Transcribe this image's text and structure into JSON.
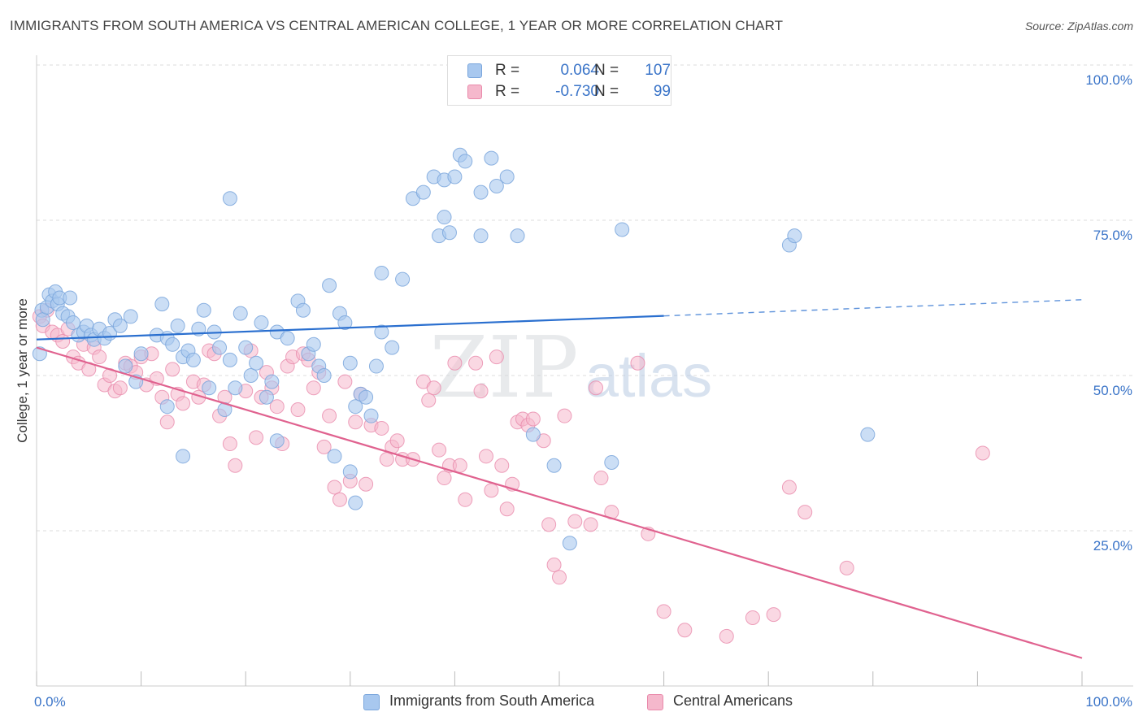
{
  "title": "IMMIGRANTS FROM SOUTH AMERICA VS CENTRAL AMERICAN COLLEGE, 1 YEAR OR MORE CORRELATION CHART",
  "source": "Source: ZipAtlas.com",
  "watermark": {
    "zip": "ZIP",
    "atlas": "atlas"
  },
  "legend": {
    "rows": [
      {
        "r_label": "R =",
        "r_value": "0.064",
        "n_label": "N =",
        "n_value": "107"
      },
      {
        "r_label": "R =",
        "r_value": "-0.730",
        "n_label": "N =",
        "n_value": "99"
      }
    ]
  },
  "bottom_legend": [
    "Immigrants from South America",
    "Central Americans"
  ],
  "colors": {
    "blue_fill": "#a8c8ef",
    "blue_stroke": "#7aa6dc",
    "blue_line": "#2a6fcf",
    "pink_fill": "#f5b8cc",
    "pink_stroke": "#e98aab",
    "pink_line": "#e0628f",
    "value_text": "#3a74c8",
    "grid": "#dddddd"
  },
  "chart_data": {
    "type": "scatter",
    "title": "IMMIGRANTS FROM SOUTH AMERICA VS CENTRAL AMERICAN COLLEGE, 1 YEAR OR MORE CORRELATION CHART",
    "xlabel": "",
    "ylabel": "College, 1 year or more",
    "xlim": [
      0,
      100
    ],
    "ylim": [
      0,
      100
    ],
    "x_tick_labels": [
      "0.0%",
      "100.0%"
    ],
    "y_ticks": [
      25,
      50,
      75,
      100
    ],
    "y_tick_labels": [
      "25.0%",
      "50.0%",
      "75.0%",
      "100.0%"
    ],
    "grid": true,
    "legend_position": "top-center",
    "series": [
      {
        "name": "Immigrants from South America",
        "R": 0.064,
        "N": 107,
        "trend": {
          "x0": 0,
          "y0": 55.8,
          "x1": 60,
          "y1": 59.6,
          "dashed_to_x": 100,
          "dashed_to_y": 62.2
        },
        "points": [
          [
            0.3,
            53.5
          ],
          [
            0.5,
            60.5
          ],
          [
            0.6,
            59.0
          ],
          [
            1.0,
            61.0
          ],
          [
            1.2,
            63.0
          ],
          [
            1.5,
            62.0
          ],
          [
            1.8,
            63.5
          ],
          [
            2.0,
            61.5
          ],
          [
            2.2,
            62.5
          ],
          [
            2.5,
            60.0
          ],
          [
            3.0,
            59.5
          ],
          [
            3.2,
            62.5
          ],
          [
            3.5,
            58.5
          ],
          [
            4.0,
            56.5
          ],
          [
            4.5,
            57.0
          ],
          [
            4.8,
            58.0
          ],
          [
            5.2,
            56.5
          ],
          [
            5.5,
            55.8
          ],
          [
            6.0,
            57.5
          ],
          [
            6.5,
            56.0
          ],
          [
            7.0,
            56.8
          ],
          [
            7.5,
            59.0
          ],
          [
            8.0,
            58.0
          ],
          [
            8.5,
            51.5
          ],
          [
            9.0,
            59.5
          ],
          [
            9.5,
            49.0
          ],
          [
            10.0,
            53.5
          ],
          [
            11.5,
            56.5
          ],
          [
            12.0,
            61.5
          ],
          [
            12.5,
            56.0
          ],
          [
            13.0,
            55.0
          ],
          [
            13.5,
            58.0
          ],
          [
            14.0,
            53.0
          ],
          [
            14.5,
            54.0
          ],
          [
            15.0,
            52.5
          ],
          [
            15.5,
            57.5
          ],
          [
            16.0,
            60.5
          ],
          [
            16.5,
            48.0
          ],
          [
            17.0,
            57.0
          ],
          [
            17.5,
            54.5
          ],
          [
            18.0,
            44.5
          ],
          [
            18.5,
            52.5
          ],
          [
            19.0,
            48.0
          ],
          [
            19.5,
            60.0
          ],
          [
            20.0,
            54.5
          ],
          [
            20.5,
            50.0
          ],
          [
            21.0,
            52.0
          ],
          [
            21.5,
            58.5
          ],
          [
            22.0,
            46.5
          ],
          [
            22.5,
            49.0
          ],
          [
            23.0,
            57.0
          ],
          [
            24.0,
            56.0
          ],
          [
            25.0,
            62.0
          ],
          [
            25.5,
            60.5
          ],
          [
            26.0,
            53.5
          ],
          [
            26.5,
            55.0
          ],
          [
            27.0,
            51.5
          ],
          [
            27.5,
            50.0
          ],
          [
            28.0,
            64.5
          ],
          [
            29.0,
            60.0
          ],
          [
            29.5,
            58.5
          ],
          [
            30.0,
            52.0
          ],
          [
            30.5,
            45.0
          ],
          [
            31.0,
            47.0
          ],
          [
            31.5,
            46.5
          ],
          [
            32.0,
            43.5
          ],
          [
            32.5,
            51.5
          ],
          [
            33.0,
            57.0
          ],
          [
            34.0,
            54.5
          ],
          [
            12.5,
            45.0
          ],
          [
            14.0,
            37.0
          ],
          [
            23.0,
            39.5
          ],
          [
            28.5,
            37.0
          ],
          [
            30.0,
            34.5
          ],
          [
            30.5,
            29.5
          ],
          [
            36.0,
            78.5
          ],
          [
            37.0,
            79.5
          ],
          [
            38.0,
            82.0
          ],
          [
            39.0,
            81.5
          ],
          [
            40.0,
            82.0
          ],
          [
            40.5,
            85.5
          ],
          [
            41.0,
            84.5
          ],
          [
            42.5,
            79.5
          ],
          [
            43.5,
            85.0
          ],
          [
            44.0,
            80.5
          ],
          [
            45.0,
            82.0
          ],
          [
            38.5,
            72.5
          ],
          [
            39.0,
            75.5
          ],
          [
            39.5,
            73.0
          ],
          [
            42.5,
            72.5
          ],
          [
            46.0,
            72.5
          ],
          [
            33.0,
            66.5
          ],
          [
            35.0,
            65.5
          ],
          [
            18.5,
            78.5
          ],
          [
            47.5,
            40.5
          ],
          [
            49.5,
            35.5
          ],
          [
            51.0,
            23.0
          ],
          [
            55.0,
            36.0
          ],
          [
            56.0,
            73.5
          ],
          [
            72.0,
            71.0
          ],
          [
            72.5,
            72.5
          ],
          [
            79.5,
            40.5
          ]
        ]
      },
      {
        "name": "Central Americans",
        "R": -0.73,
        "N": 99,
        "trend": {
          "x0": 0,
          "y0": 54.5,
          "x1": 100,
          "y1": 4.5
        },
        "points": [
          [
            0.3,
            59.5
          ],
          [
            0.6,
            58.0
          ],
          [
            1.0,
            60.5
          ],
          [
            1.5,
            57.0
          ],
          [
            2.0,
            56.5
          ],
          [
            2.5,
            55.5
          ],
          [
            3.0,
            57.5
          ],
          [
            3.5,
            53.0
          ],
          [
            4.0,
            52.0
          ],
          [
            4.5,
            55.0
          ],
          [
            5.0,
            51.0
          ],
          [
            5.5,
            54.5
          ],
          [
            6.0,
            53.0
          ],
          [
            6.5,
            48.5
          ],
          [
            7.0,
            50.0
          ],
          [
            7.5,
            47.5
          ],
          [
            8.0,
            48.0
          ],
          [
            8.5,
            52.0
          ],
          [
            9.0,
            51.5
          ],
          [
            9.5,
            50.5
          ],
          [
            10.0,
            53.0
          ],
          [
            10.5,
            48.5
          ],
          [
            11.0,
            53.5
          ],
          [
            11.5,
            49.5
          ],
          [
            12.0,
            46.5
          ],
          [
            12.5,
            42.5
          ],
          [
            13.0,
            51.0
          ],
          [
            13.5,
            47.0
          ],
          [
            14.0,
            45.5
          ],
          [
            15.0,
            49.0
          ],
          [
            15.5,
            46.5
          ],
          [
            16.0,
            48.5
          ],
          [
            16.5,
            54.0
          ],
          [
            17.0,
            53.5
          ],
          [
            17.5,
            43.5
          ],
          [
            18.0,
            46.5
          ],
          [
            18.5,
            39.0
          ],
          [
            19.0,
            35.5
          ],
          [
            20.0,
            47.5
          ],
          [
            20.5,
            54.0
          ],
          [
            21.0,
            40.0
          ],
          [
            21.5,
            46.5
          ],
          [
            22.0,
            50.5
          ],
          [
            22.5,
            48.0
          ],
          [
            23.0,
            45.0
          ],
          [
            23.5,
            39.0
          ],
          [
            24.0,
            51.5
          ],
          [
            24.5,
            53.0
          ],
          [
            25.0,
            44.5
          ],
          [
            25.5,
            53.5
          ],
          [
            26.0,
            52.5
          ],
          [
            26.5,
            48.0
          ],
          [
            27.0,
            50.5
          ],
          [
            27.5,
            38.5
          ],
          [
            28.0,
            43.5
          ],
          [
            28.5,
            32.0
          ],
          [
            29.0,
            30.0
          ],
          [
            29.5,
            49.0
          ],
          [
            30.0,
            33.0
          ],
          [
            30.5,
            42.5
          ],
          [
            31.0,
            47.0
          ],
          [
            31.5,
            32.5
          ],
          [
            32.0,
            42.0
          ],
          [
            33.0,
            41.5
          ],
          [
            33.5,
            36.5
          ],
          [
            34.0,
            38.5
          ],
          [
            34.5,
            39.5
          ],
          [
            35.0,
            36.5
          ],
          [
            36.0,
            36.5
          ],
          [
            37.0,
            49.0
          ],
          [
            37.5,
            46.0
          ],
          [
            38.0,
            48.0
          ],
          [
            38.5,
            38.0
          ],
          [
            39.0,
            33.5
          ],
          [
            39.5,
            35.5
          ],
          [
            40.0,
            52.0
          ],
          [
            40.5,
            35.5
          ],
          [
            41.0,
            30.0
          ],
          [
            42.0,
            52.0
          ],
          [
            42.5,
            47.5
          ],
          [
            43.0,
            37.0
          ],
          [
            43.5,
            31.5
          ],
          [
            44.0,
            53.0
          ],
          [
            44.5,
            35.5
          ],
          [
            45.0,
            28.5
          ],
          [
            45.5,
            32.5
          ],
          [
            46.0,
            42.5
          ],
          [
            46.5,
            43.0
          ],
          [
            47.0,
            42.0
          ],
          [
            47.5,
            43.0
          ],
          [
            48.5,
            39.5
          ],
          [
            49.0,
            26.0
          ],
          [
            49.5,
            19.5
          ],
          [
            50.0,
            17.5
          ],
          [
            50.5,
            43.5
          ],
          [
            51.5,
            26.5
          ],
          [
            53.0,
            26.0
          ],
          [
            53.5,
            48.0
          ],
          [
            54.0,
            33.5
          ],
          [
            55.0,
            28.0
          ],
          [
            57.5,
            52.0
          ],
          [
            58.5,
            24.5
          ],
          [
            60.0,
            12.0
          ],
          [
            62.0,
            9.0
          ],
          [
            66.0,
            8.0
          ],
          [
            68.5,
            11.0
          ],
          [
            70.5,
            11.5
          ],
          [
            72.0,
            32.0
          ],
          [
            73.5,
            28.0
          ],
          [
            77.5,
            19.0
          ],
          [
            90.5,
            37.5
          ]
        ]
      }
    ]
  }
}
